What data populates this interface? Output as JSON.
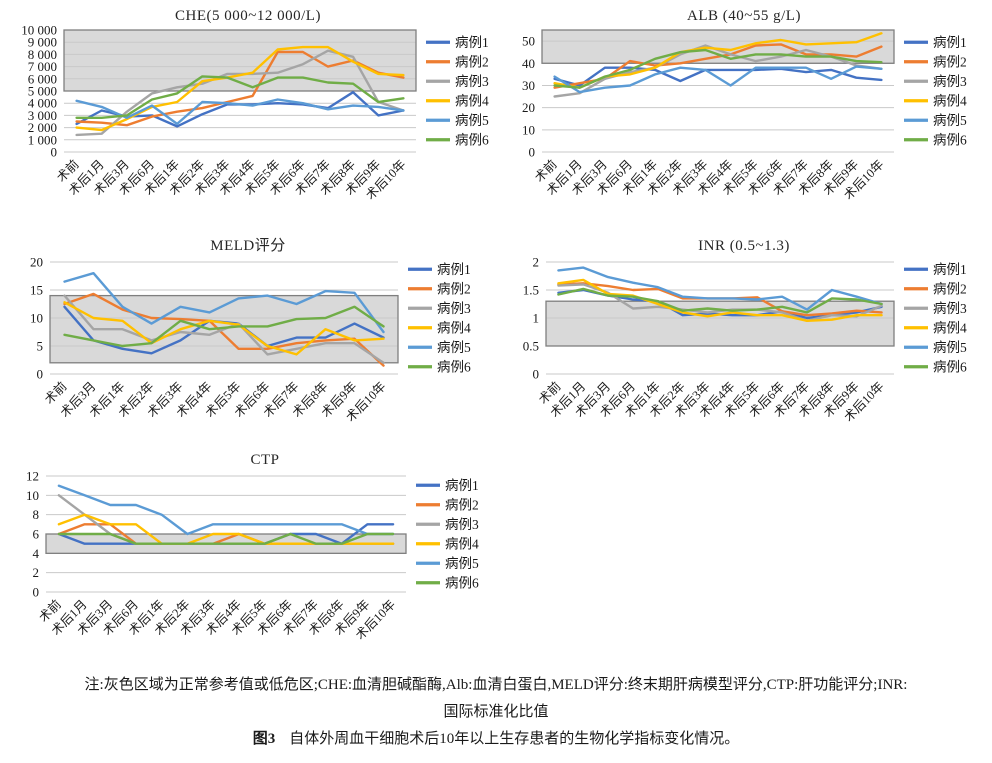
{
  "figure": {
    "note_line1": "注:灰色区域为正常参考值或低危区;CHE:血清胆碱酯酶,Alb:血清白蛋白,MELD评分:终末期肝病模型评分,CTP:肝功能评分;INR:",
    "note_line2": "国际标准化比值",
    "caption_label": "图3",
    "caption_text": "自体外周血干细胞术后10年以上生存患者的生物化学指标变化情况。"
  },
  "legend": [
    "病例1",
    "病例2",
    "病例3",
    "病例4",
    "病例5",
    "病例6"
  ],
  "series_colors": [
    "#4472C4",
    "#ED7D31",
    "#A5A5A5",
    "#FFC000",
    "#5B9BD5",
    "#70AD47"
  ],
  "band_fill": "#D9D9D9",
  "band_border": "#7F7F7F",
  "grid_color": "#C9C9C9",
  "chart_data": [
    {
      "type": "line",
      "title": "CHE(5 000~12 000/L)",
      "categories": [
        "术前",
        "术后1月",
        "术后3月",
        "术后6月",
        "术后1年",
        "术后2年",
        "术后3年",
        "术后4年",
        "术后5年",
        "术后6年",
        "术后7年",
        "术后8年",
        "术后9年",
        "术后10年"
      ],
      "ylim": [
        0,
        10000
      ],
      "ytick_values": [
        0,
        1000,
        2000,
        3000,
        4000,
        5000,
        6000,
        7000,
        8000,
        9000,
        10000
      ],
      "ytick_labels": [
        "0",
        "1 000",
        "2 000",
        "3 000",
        "4 000",
        "5 000",
        "6 000",
        "7 000",
        "8 000",
        "9 000",
        "10 000"
      ],
      "band": [
        5000,
        10000
      ],
      "grid": true,
      "legend_position": "right",
      "series": [
        {
          "name": "病例1",
          "values": [
            2300,
            3400,
            2900,
            3000,
            2100,
            3100,
            3900,
            3900,
            4000,
            3900,
            3600,
            4900,
            3000,
            3400
          ]
        },
        {
          "name": "病例2",
          "values": [
            2500,
            2400,
            2200,
            2900,
            3300,
            3600,
            4100,
            4600,
            8200,
            8200,
            7000,
            7500,
            6500,
            6100
          ]
        },
        {
          "name": "病例3",
          "values": [
            1400,
            1500,
            3300,
            4800,
            5300,
            5600,
            6400,
            6400,
            6500,
            7200,
            8300,
            7800,
            4100,
            3400
          ]
        },
        {
          "name": "病例4",
          "values": [
            2000,
            1800,
            2700,
            3700,
            4100,
            5800,
            6100,
            6500,
            8400,
            8600,
            8600,
            7400,
            6400,
            6300
          ]
        },
        {
          "name": "病例5",
          "values": [
            4200,
            3700,
            2800,
            3800,
            2300,
            4100,
            4000,
            3800,
            4300,
            4000,
            3500,
            3800,
            3700,
            3400
          ]
        },
        {
          "name": "病例6",
          "values": [
            2800,
            2800,
            3000,
            4300,
            4800,
            6200,
            6100,
            5300,
            6100,
            6100,
            5700,
            5600,
            4100,
            4400
          ]
        }
      ]
    },
    {
      "type": "line",
      "title": "ALB (40~55 g/L)",
      "categories": [
        "术前",
        "术后1月",
        "术后3月",
        "术后6月",
        "术后1年",
        "术后2年",
        "术后3年",
        "术后4年",
        "术后5年",
        "术后6年",
        "术后7年",
        "术后8年",
        "术后9年",
        "术后10年"
      ],
      "ylim": [
        0,
        55
      ],
      "ytick_values": [
        0,
        10,
        20,
        30,
        40,
        50
      ],
      "ytick_labels": [
        "0",
        "10",
        "20",
        "30",
        "40",
        "50"
      ],
      "band": [
        40,
        55
      ],
      "grid": true,
      "legend_position": "right",
      "series": [
        {
          "name": "病例1",
          "values": [
            33,
            30,
            38,
            38,
            37,
            32,
            37,
            37,
            37,
            37.5,
            36,
            37,
            33.5,
            32.5
          ]
        },
        {
          "name": "病例2",
          "values": [
            29,
            31,
            33,
            41,
            39,
            40,
            42,
            44,
            48,
            48.5,
            44,
            44,
            43,
            47.5
          ]
        },
        {
          "name": "病例3",
          "values": [
            25,
            26.5,
            33,
            36,
            38,
            44,
            48,
            44,
            41,
            43,
            46,
            43,
            39,
            37.5
          ]
        },
        {
          "name": "病例4",
          "values": [
            31,
            29,
            34,
            35,
            38,
            45,
            47,
            46,
            49,
            50.5,
            48.5,
            49,
            49.5,
            53.5
          ]
        },
        {
          "name": "病例5",
          "values": [
            34,
            27,
            29,
            30,
            35,
            38,
            37,
            30,
            38,
            38,
            38,
            33,
            38.5,
            37.5
          ]
        },
        {
          "name": "病例6",
          "values": [
            30,
            29,
            34,
            37,
            42,
            45,
            46,
            42,
            44,
            44,
            43,
            43,
            41,
            40.5
          ]
        }
      ]
    },
    {
      "type": "line",
      "title": "MELD评分",
      "categories": [
        "术前",
        "术后3月",
        "术后1年",
        "术后2年",
        "术后3年",
        "术后4年",
        "术后5年",
        "术后6年",
        "术后7年",
        "术后8年",
        "术后9年",
        "术后10年"
      ],
      "ylim": [
        0,
        20
      ],
      "ytick_values": [
        0,
        5,
        10,
        15,
        20
      ],
      "ytick_labels": [
        "0",
        "5",
        "10",
        "15",
        "20"
      ],
      "band": [
        2,
        14
      ],
      "grid": true,
      "legend_position": "right",
      "series": [
        {
          "name": "病例1",
          "values": [
            12,
            6,
            4.5,
            3.7,
            6,
            9.5,
            9,
            5,
            6.5,
            6.5,
            9,
            6.5
          ]
        },
        {
          "name": "病例2",
          "values": [
            12.5,
            14.3,
            11.5,
            10,
            9.8,
            9.5,
            4.5,
            4.5,
            5.5,
            6,
            6.3,
            1.5
          ]
        },
        {
          "name": "病例3",
          "values": [
            14,
            8,
            8,
            6,
            7.5,
            7,
            9,
            3.5,
            4.5,
            5.5,
            5.5,
            2
          ]
        },
        {
          "name": "病例4",
          "values": [
            12.8,
            10,
            9.5,
            5.5,
            8,
            9.5,
            8.8,
            5,
            3.5,
            8,
            6,
            6.3
          ]
        },
        {
          "name": "病例5",
          "values": [
            16.5,
            18,
            12,
            9,
            12,
            11,
            13.5,
            14,
            12.5,
            14.8,
            14.5,
            7.5
          ]
        },
        {
          "name": "病例6",
          "values": [
            7,
            6,
            5,
            5.5,
            9.5,
            8,
            8.5,
            8.5,
            9.8,
            10,
            12,
            8.5
          ]
        }
      ]
    },
    {
      "type": "line",
      "title": "INR (0.5~1.3)",
      "categories": [
        "术前",
        "术后1月",
        "术后3月",
        "术后6月",
        "术后1年",
        "术后2年",
        "术后3年",
        "术后4年",
        "术后5年",
        "术后6年",
        "术后7年",
        "术后8年",
        "术后9年",
        "术后10年"
      ],
      "ylim": [
        0,
        2
      ],
      "ytick_values": [
        0,
        0.5,
        1,
        1.5,
        2
      ],
      "ytick_labels": [
        "0",
        "0.5",
        "1",
        "1.5",
        "2"
      ],
      "band": [
        0.5,
        1.3
      ],
      "grid": true,
      "legend_position": "right",
      "series": [
        {
          "name": "病例1",
          "values": [
            1.45,
            1.5,
            1.4,
            1.33,
            1.3,
            1.05,
            1.08,
            1.05,
            1.05,
            1.12,
            1.0,
            1.05,
            1.1,
            1.2
          ]
        },
        {
          "name": "病例2",
          "values": [
            1.6,
            1.62,
            1.57,
            1.5,
            1.52,
            1.35,
            1.35,
            1.35,
            1.37,
            1.12,
            1.05,
            1.08,
            1.13,
            1.1
          ]
        },
        {
          "name": "病例3",
          "values": [
            1.58,
            1.6,
            1.45,
            1.17,
            1.2,
            1.15,
            1.1,
            1.15,
            1.15,
            1.1,
            0.95,
            1.05,
            1.03,
            1.22
          ]
        },
        {
          "name": "病例4",
          "values": [
            1.62,
            1.68,
            1.43,
            1.4,
            1.25,
            1.1,
            1.03,
            1.1,
            1.05,
            1.05,
            0.95,
            0.97,
            1.05,
            1.05
          ]
        },
        {
          "name": "病例5",
          "values": [
            1.85,
            1.9,
            1.73,
            1.63,
            1.55,
            1.38,
            1.35,
            1.35,
            1.33,
            1.38,
            1.15,
            1.5,
            1.38,
            1.25
          ]
        },
        {
          "name": "病例6",
          "values": [
            1.42,
            1.52,
            1.4,
            1.38,
            1.3,
            1.13,
            1.17,
            1.13,
            1.15,
            1.2,
            1.1,
            1.35,
            1.33,
            1.25
          ]
        }
      ]
    },
    {
      "type": "line",
      "title": "CTP",
      "categories": [
        "术前",
        "术后1月",
        "术后3月",
        "术后6月",
        "术后1年",
        "术后2年",
        "术后3年",
        "术后4年",
        "术后5年",
        "术后6年",
        "术后7年",
        "术后8年",
        "术后9年",
        "术后10年"
      ],
      "ylim": [
        0,
        12
      ],
      "ytick_values": [
        0,
        2,
        4,
        6,
        8,
        10,
        12
      ],
      "ytick_labels": [
        "0",
        "2",
        "4",
        "6",
        "8",
        "10",
        "12"
      ],
      "band": [
        4,
        6
      ],
      "grid": true,
      "legend_position": "right",
      "series": [
        {
          "name": "病例1",
          "values": [
            6,
            5,
            5,
            5,
            5,
            5,
            5,
            5,
            5,
            6,
            6,
            5,
            7,
            7
          ]
        },
        {
          "name": "病例2",
          "values": [
            6,
            7,
            7,
            5,
            5,
            5,
            5,
            6,
            5,
            5,
            5,
            5,
            5,
            5
          ]
        },
        {
          "name": "病例3",
          "values": [
            10,
            8,
            6,
            5,
            5,
            5,
            5,
            5,
            5,
            5,
            5,
            5,
            5,
            5
          ]
        },
        {
          "name": "病例4",
          "values": [
            7,
            8,
            7,
            7,
            5,
            5,
            6,
            6,
            5,
            5,
            5,
            5,
            5,
            5
          ]
        },
        {
          "name": "病例5",
          "values": [
            11,
            10,
            9,
            9,
            8,
            6,
            7,
            7,
            7,
            7,
            7,
            7,
            6,
            6
          ]
        },
        {
          "name": "病例6",
          "values": [
            6,
            6,
            6,
            5,
            5,
            5,
            5,
            5,
            5,
            6,
            5,
            5,
            6,
            6
          ]
        }
      ]
    }
  ]
}
